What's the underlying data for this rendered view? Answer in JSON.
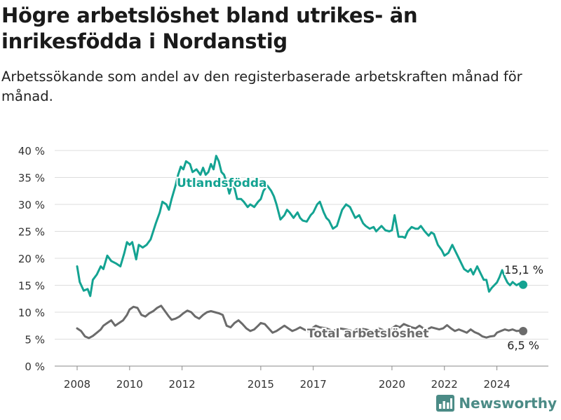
{
  "header": {
    "title": "Högre arbetslöshet bland utrikes- än inrikesfödda i Nordanstig",
    "subtitle": "Arbetssökande som andel av den registerbaserade arbetskraften månad för månad."
  },
  "brand": {
    "name": "Newsworthy",
    "icon": "bar-chart-logo-icon",
    "color": "#4b8b86"
  },
  "chart_data": {
    "type": "line",
    "x_range": [
      2008,
      2025
    ],
    "ylim": [
      0,
      40
    ],
    "y_ticks": [
      0,
      5,
      10,
      15,
      20,
      25,
      30,
      35,
      40
    ],
    "y_tick_labels": [
      "0 %",
      "5 %",
      "10 %",
      "15 %",
      "20 %",
      "25 %",
      "30 %",
      "35 %",
      "40 %"
    ],
    "x_ticks": [
      2008,
      2010,
      2012,
      2015,
      2017,
      2020,
      2022,
      2024
    ],
    "x_tick_labels": [
      "2008",
      "2010",
      "2012",
      "2015",
      "2017",
      "2020",
      "2022",
      "2024"
    ],
    "grid": true,
    "series": [
      {
        "name": "Utlandsfödda",
        "color": "#14a392",
        "end_label": "15,1 %",
        "points": [
          [
            2008.0,
            18.5
          ],
          [
            2008.1,
            15.6
          ],
          [
            2008.25,
            14.0
          ],
          [
            2008.4,
            14.3
          ],
          [
            2008.5,
            13.0
          ],
          [
            2008.6,
            16.0
          ],
          [
            2008.75,
            17.0
          ],
          [
            2008.9,
            18.5
          ],
          [
            2009.0,
            18.0
          ],
          [
            2009.15,
            20.5
          ],
          [
            2009.3,
            19.5
          ],
          [
            2009.5,
            19.0
          ],
          [
            2009.65,
            18.5
          ],
          [
            2009.8,
            21.0
          ],
          [
            2009.9,
            23.0
          ],
          [
            2010.0,
            22.5
          ],
          [
            2010.1,
            23.0
          ],
          [
            2010.25,
            19.8
          ],
          [
            2010.35,
            22.5
          ],
          [
            2010.5,
            22.0
          ],
          [
            2010.65,
            22.5
          ],
          [
            2010.8,
            23.5
          ],
          [
            2010.9,
            25.0
          ],
          [
            2011.0,
            26.5
          ],
          [
            2011.15,
            28.5
          ],
          [
            2011.25,
            30.5
          ],
          [
            2011.4,
            30.0
          ],
          [
            2011.5,
            29.0
          ],
          [
            2011.6,
            31.0
          ],
          [
            2011.75,
            33.5
          ],
          [
            2011.85,
            35.5
          ],
          [
            2011.95,
            37.0
          ],
          [
            2012.05,
            36.5
          ],
          [
            2012.15,
            38.0
          ],
          [
            2012.3,
            37.5
          ],
          [
            2012.4,
            36.0
          ],
          [
            2012.55,
            36.5
          ],
          [
            2012.7,
            35.5
          ],
          [
            2012.8,
            36.8
          ],
          [
            2012.9,
            35.5
          ],
          [
            2013.0,
            36.0
          ],
          [
            2013.1,
            37.5
          ],
          [
            2013.2,
            36.5
          ],
          [
            2013.3,
            39.0
          ],
          [
            2013.4,
            38.0
          ],
          [
            2013.5,
            36.0
          ],
          [
            2013.6,
            35.5
          ],
          [
            2013.7,
            34.0
          ],
          [
            2013.8,
            32.0
          ],
          [
            2013.9,
            33.5
          ],
          [
            2014.0,
            33.0
          ],
          [
            2014.1,
            31.0
          ],
          [
            2014.25,
            31.0
          ],
          [
            2014.35,
            30.5
          ],
          [
            2014.5,
            29.5
          ],
          [
            2014.6,
            30.0
          ],
          [
            2014.75,
            29.5
          ],
          [
            2014.9,
            30.5
          ],
          [
            2015.0,
            31.0
          ],
          [
            2015.1,
            32.5
          ],
          [
            2015.25,
            33.5
          ],
          [
            2015.4,
            32.5
          ],
          [
            2015.5,
            31.5
          ],
          [
            2015.6,
            30.0
          ],
          [
            2015.75,
            27.2
          ],
          [
            2015.9,
            28.0
          ],
          [
            2016.0,
            29.0
          ],
          [
            2016.1,
            28.5
          ],
          [
            2016.25,
            27.5
          ],
          [
            2016.4,
            28.5
          ],
          [
            2016.5,
            27.5
          ],
          [
            2016.6,
            27.0
          ],
          [
            2016.75,
            26.8
          ],
          [
            2016.9,
            28.0
          ],
          [
            2017.0,
            28.5
          ],
          [
            2017.15,
            30.0
          ],
          [
            2017.25,
            30.5
          ],
          [
            2017.4,
            28.5
          ],
          [
            2017.5,
            27.5
          ],
          [
            2017.6,
            27.0
          ],
          [
            2017.75,
            25.5
          ],
          [
            2017.9,
            26.0
          ],
          [
            2018.0,
            27.5
          ],
          [
            2018.1,
            29.0
          ],
          [
            2018.25,
            30.0
          ],
          [
            2018.4,
            29.5
          ],
          [
            2018.5,
            28.5
          ],
          [
            2018.6,
            27.5
          ],
          [
            2018.75,
            28.0
          ],
          [
            2018.9,
            26.5
          ],
          [
            2019.0,
            26.0
          ],
          [
            2019.15,
            25.5
          ],
          [
            2019.3,
            25.8
          ],
          [
            2019.4,
            25.0
          ],
          [
            2019.5,
            25.5
          ],
          [
            2019.6,
            26.0
          ],
          [
            2019.75,
            25.2
          ],
          [
            2019.9,
            25.0
          ],
          [
            2020.0,
            25.2
          ],
          [
            2020.1,
            28.0
          ],
          [
            2020.25,
            24.0
          ],
          [
            2020.4,
            24.0
          ],
          [
            2020.5,
            23.8
          ],
          [
            2020.6,
            25.0
          ],
          [
            2020.75,
            25.8
          ],
          [
            2020.9,
            25.5
          ],
          [
            2021.0,
            25.5
          ],
          [
            2021.1,
            26.0
          ],
          [
            2021.25,
            25.0
          ],
          [
            2021.4,
            24.2
          ],
          [
            2021.5,
            24.8
          ],
          [
            2021.6,
            24.5
          ],
          [
            2021.75,
            22.5
          ],
          [
            2021.9,
            21.5
          ],
          [
            2022.0,
            20.5
          ],
          [
            2022.15,
            21.0
          ],
          [
            2022.3,
            22.5
          ],
          [
            2022.4,
            21.5
          ],
          [
            2022.5,
            20.5
          ],
          [
            2022.6,
            19.5
          ],
          [
            2022.75,
            18.0
          ],
          [
            2022.9,
            17.5
          ],
          [
            2023.0,
            18.0
          ],
          [
            2023.1,
            17.0
          ],
          [
            2023.25,
            18.5
          ],
          [
            2023.4,
            17.0
          ],
          [
            2023.5,
            16.0
          ],
          [
            2023.6,
            16.0
          ],
          [
            2023.7,
            13.8
          ],
          [
            2023.8,
            14.5
          ],
          [
            2023.9,
            15.0
          ],
          [
            2024.0,
            15.5
          ],
          [
            2024.1,
            16.5
          ],
          [
            2024.2,
            17.8
          ],
          [
            2024.3,
            16.5
          ],
          [
            2024.4,
            15.5
          ],
          [
            2024.5,
            15.0
          ],
          [
            2024.6,
            15.6
          ],
          [
            2024.75,
            15.0
          ],
          [
            2024.85,
            15.3
          ],
          [
            2025.0,
            15.1
          ]
        ]
      },
      {
        "name": "Total arbetslöshet",
        "color": "#6b6b6b",
        "end_label": "6,5 %",
        "points": [
          [
            2008.0,
            7.0
          ],
          [
            2008.15,
            6.5
          ],
          [
            2008.3,
            5.5
          ],
          [
            2008.45,
            5.2
          ],
          [
            2008.6,
            5.6
          ],
          [
            2008.75,
            6.2
          ],
          [
            2008.9,
            6.8
          ],
          [
            2009.0,
            7.5
          ],
          [
            2009.15,
            8.0
          ],
          [
            2009.3,
            8.5
          ],
          [
            2009.45,
            7.5
          ],
          [
            2009.6,
            8.0
          ],
          [
            2009.75,
            8.5
          ],
          [
            2009.9,
            9.5
          ],
          [
            2010.0,
            10.5
          ],
          [
            2010.15,
            11.0
          ],
          [
            2010.3,
            10.8
          ],
          [
            2010.45,
            9.5
          ],
          [
            2010.6,
            9.2
          ],
          [
            2010.75,
            9.8
          ],
          [
            2010.9,
            10.2
          ],
          [
            2011.05,
            10.8
          ],
          [
            2011.2,
            11.2
          ],
          [
            2011.35,
            10.2
          ],
          [
            2011.5,
            9.2
          ],
          [
            2011.6,
            8.6
          ],
          [
            2011.75,
            8.8
          ],
          [
            2011.9,
            9.2
          ],
          [
            2012.05,
            9.8
          ],
          [
            2012.2,
            10.3
          ],
          [
            2012.35,
            10.0
          ],
          [
            2012.5,
            9.2
          ],
          [
            2012.65,
            8.8
          ],
          [
            2012.8,
            9.5
          ],
          [
            2012.95,
            10.0
          ],
          [
            2013.1,
            10.2
          ],
          [
            2013.25,
            10.0
          ],
          [
            2013.4,
            9.8
          ],
          [
            2013.55,
            9.5
          ],
          [
            2013.7,
            7.5
          ],
          [
            2013.85,
            7.2
          ],
          [
            2014.0,
            8.0
          ],
          [
            2014.15,
            8.5
          ],
          [
            2014.3,
            7.8
          ],
          [
            2014.45,
            7.0
          ],
          [
            2014.6,
            6.5
          ],
          [
            2014.75,
            6.8
          ],
          [
            2014.9,
            7.5
          ],
          [
            2015.0,
            8.0
          ],
          [
            2015.15,
            7.8
          ],
          [
            2015.3,
            7.0
          ],
          [
            2015.45,
            6.2
          ],
          [
            2015.6,
            6.5
          ],
          [
            2015.75,
            7.0
          ],
          [
            2015.9,
            7.5
          ],
          [
            2016.05,
            7.0
          ],
          [
            2016.2,
            6.5
          ],
          [
            2016.35,
            6.8
          ],
          [
            2016.5,
            7.2
          ],
          [
            2016.65,
            6.8
          ],
          [
            2016.8,
            6.5
          ],
          [
            2016.95,
            7.0
          ],
          [
            2017.1,
            7.5
          ],
          [
            2017.25,
            7.2
          ],
          [
            2017.5,
            7.0
          ],
          [
            2017.75,
            6.5
          ],
          [
            2018.0,
            7.0
          ],
          [
            2018.25,
            6.8
          ],
          [
            2018.5,
            6.5
          ],
          [
            2018.75,
            7.0
          ],
          [
            2019.0,
            6.8
          ],
          [
            2019.25,
            6.5
          ],
          [
            2019.5,
            7.0
          ],
          [
            2019.75,
            6.5
          ],
          [
            2020.0,
            7.0
          ],
          [
            2020.15,
            7.5
          ],
          [
            2020.3,
            7.2
          ],
          [
            2020.45,
            7.8
          ],
          [
            2020.6,
            7.5
          ],
          [
            2020.75,
            7.2
          ],
          [
            2020.9,
            7.0
          ],
          [
            2021.05,
            7.5
          ],
          [
            2021.2,
            7.0
          ],
          [
            2021.35,
            6.8
          ],
          [
            2021.5,
            7.2
          ],
          [
            2021.65,
            7.0
          ],
          [
            2021.8,
            6.8
          ],
          [
            2021.95,
            7.0
          ],
          [
            2022.1,
            7.6
          ],
          [
            2022.25,
            7.0
          ],
          [
            2022.4,
            6.5
          ],
          [
            2022.55,
            6.8
          ],
          [
            2022.7,
            6.5
          ],
          [
            2022.85,
            6.2
          ],
          [
            2023.0,
            6.8
          ],
          [
            2023.15,
            6.3
          ],
          [
            2023.3,
            6.0
          ],
          [
            2023.45,
            5.5
          ],
          [
            2023.6,
            5.3
          ],
          [
            2023.75,
            5.5
          ],
          [
            2023.9,
            5.6
          ],
          [
            2024.0,
            6.2
          ],
          [
            2024.15,
            6.5
          ],
          [
            2024.3,
            6.8
          ],
          [
            2024.45,
            6.6
          ],
          [
            2024.6,
            6.8
          ],
          [
            2024.75,
            6.5
          ],
          [
            2024.9,
            6.6
          ],
          [
            2025.0,
            6.5
          ]
        ]
      }
    ]
  }
}
